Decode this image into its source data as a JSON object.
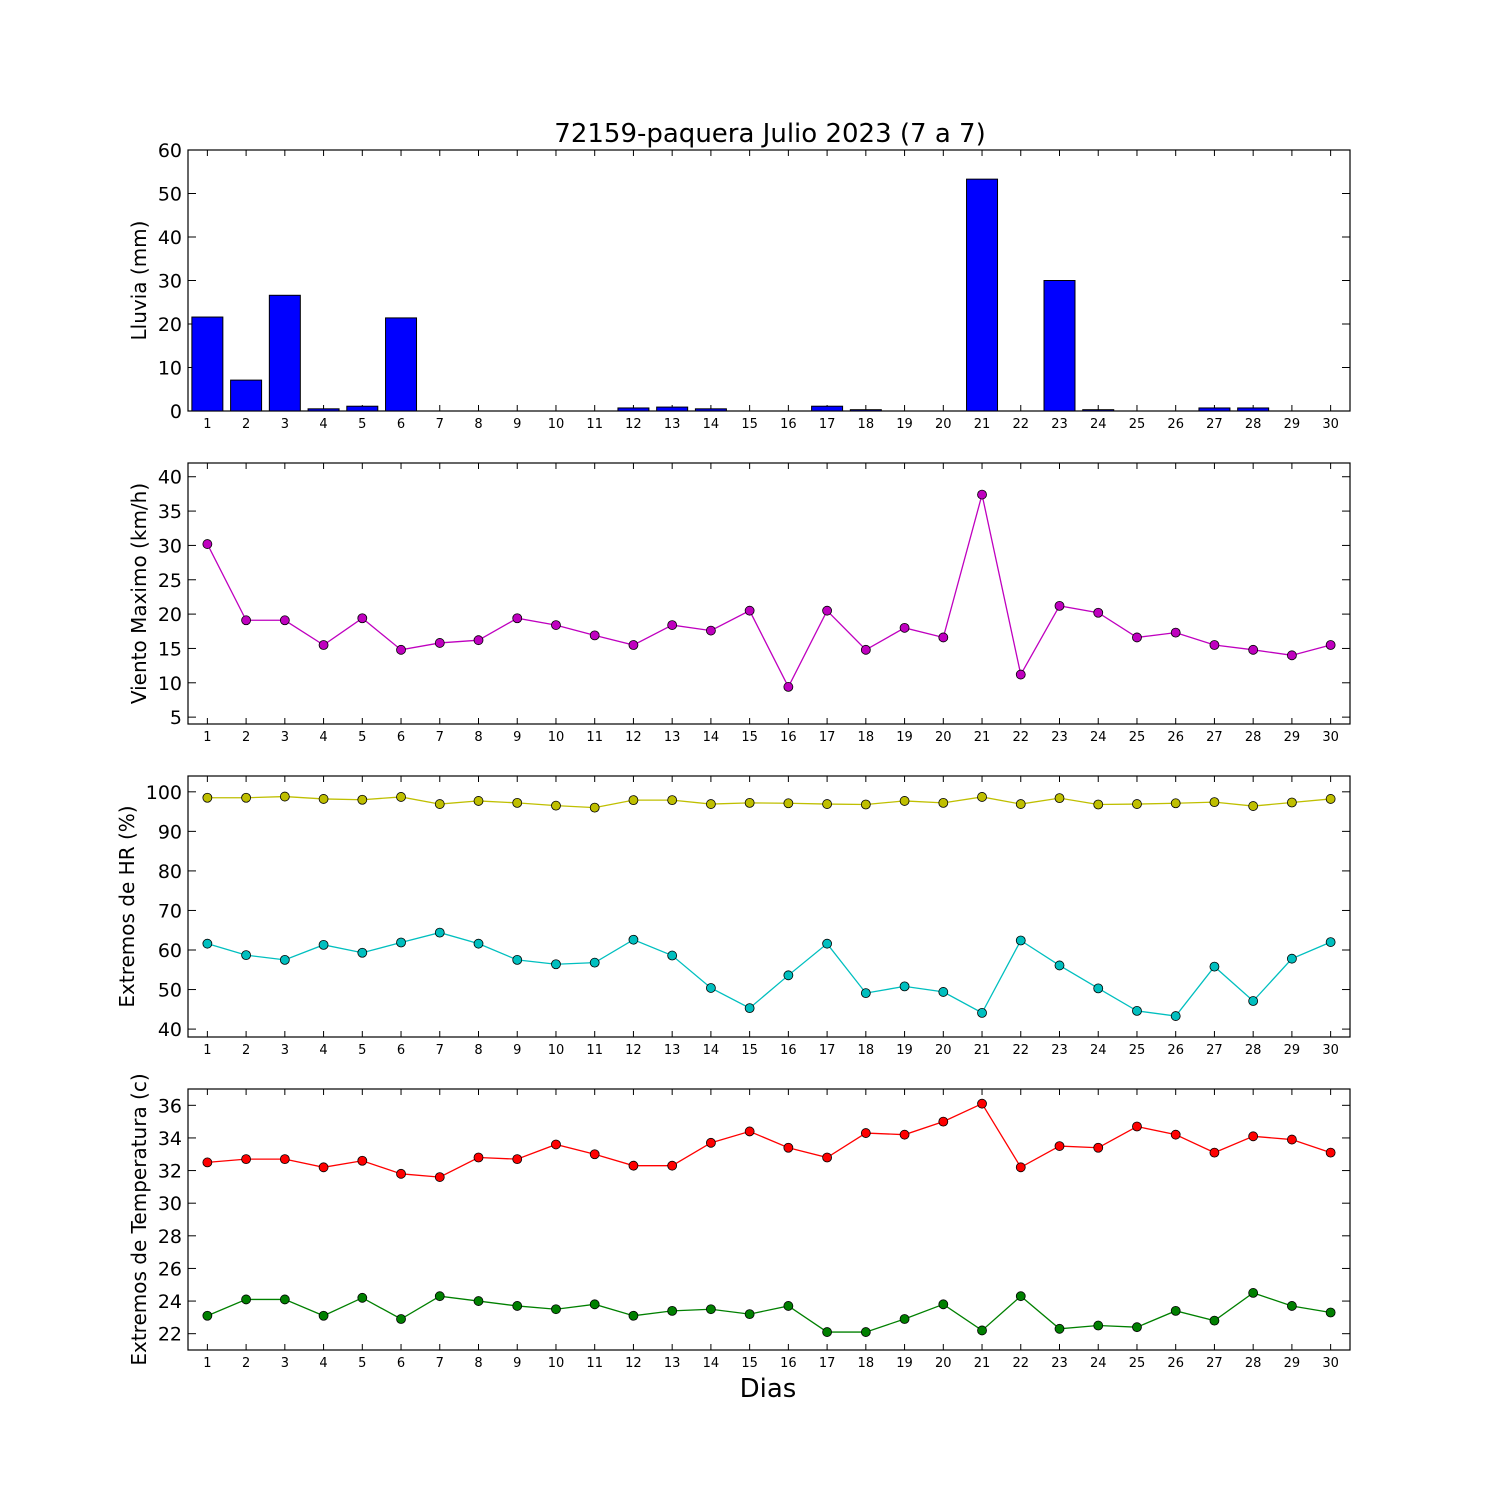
{
  "title": "72159-paquera Julio 2023  (7 a 7)",
  "xlabel": "Dias",
  "colors": {
    "rain": "#0000ff",
    "wind": "#bf00bf",
    "hr_max": "#bfbf00",
    "hr_min": "#00bfbf",
    "temp_max": "#ff0000",
    "temp_min": "#008000"
  },
  "chart_data": [
    {
      "type": "bar",
      "ylabel": "Lluvia (mm)",
      "categories": [
        "1",
        "2",
        "3",
        "4",
        "5",
        "6",
        "7",
        "8",
        "9",
        "10",
        "11",
        "12",
        "13",
        "14",
        "15",
        "16",
        "17",
        "18",
        "19",
        "20",
        "21",
        "22",
        "23",
        "24",
        "25",
        "26",
        "27",
        "28",
        "29",
        "30"
      ],
      "values": [
        21.6,
        7.1,
        26.6,
        0.5,
        1.1,
        21.4,
        0,
        0,
        0,
        0,
        0,
        0.7,
        0.9,
        0.5,
        0,
        0,
        1.1,
        0.3,
        0,
        0,
        53.3,
        0,
        30.0,
        0.3,
        0,
        0,
        0.7,
        0.7,
        0,
        0
      ],
      "ylim": [
        0,
        60
      ],
      "yticks": [
        0,
        10,
        20,
        30,
        40,
        50,
        60
      ]
    },
    {
      "type": "line",
      "ylabel": "Viento Maximo (km/h)",
      "categories": [
        "1",
        "2",
        "3",
        "4",
        "5",
        "6",
        "7",
        "8",
        "9",
        "10",
        "11",
        "12",
        "13",
        "14",
        "15",
        "16",
        "17",
        "18",
        "19",
        "20",
        "21",
        "22",
        "23",
        "24",
        "25",
        "26",
        "27",
        "28",
        "29",
        "30"
      ],
      "series": [
        {
          "values": [
            30.2,
            19.1,
            19.1,
            15.5,
            19.4,
            14.8,
            15.8,
            16.2,
            19.4,
            18.4,
            16.9,
            15.5,
            18.4,
            17.6,
            20.5,
            9.4,
            20.5,
            14.8,
            18.0,
            16.6,
            37.4,
            11.2,
            21.2,
            20.2,
            16.6,
            17.3,
            15.5,
            14.8,
            14.0,
            15.5
          ]
        }
      ],
      "ylim": [
        4,
        42
      ],
      "yticks": [
        5,
        10,
        15,
        20,
        25,
        30,
        35,
        40
      ]
    },
    {
      "type": "line",
      "ylabel": "Extremos de HR (%)",
      "categories": [
        "1",
        "2",
        "3",
        "4",
        "5",
        "6",
        "7",
        "8",
        "9",
        "10",
        "11",
        "12",
        "13",
        "14",
        "15",
        "16",
        "17",
        "18",
        "19",
        "20",
        "21",
        "22",
        "23",
        "24",
        "25",
        "26",
        "27",
        "28",
        "29",
        "30"
      ],
      "series": [
        {
          "values": [
            98.5,
            98.5,
            98.8,
            98.2,
            98.0,
            98.7,
            96.9,
            97.7,
            97.2,
            96.5,
            96.0,
            97.9,
            97.9,
            96.9,
            97.2,
            97.1,
            96.9,
            96.8,
            97.7,
            97.2,
            98.7,
            96.9,
            98.4,
            96.8,
            96.9,
            97.1,
            97.4,
            96.4,
            97.3,
            98.2
          ]
        },
        {
          "values": [
            61.6,
            58.7,
            57.5,
            61.3,
            59.3,
            61.9,
            64.4,
            61.6,
            57.5,
            56.4,
            56.8,
            62.6,
            58.6,
            50.4,
            45.3,
            53.6,
            61.6,
            49.1,
            50.8,
            49.4,
            44.1,
            62.4,
            56.1,
            50.3,
            44.6,
            43.3,
            55.8,
            47.1,
            57.8,
            62.0
          ]
        }
      ],
      "ylim": [
        38,
        104
      ],
      "yticks": [
        40,
        50,
        60,
        70,
        80,
        90,
        100
      ]
    },
    {
      "type": "line",
      "ylabel": "Extremos de Temperatura (c)",
      "categories": [
        "1",
        "2",
        "3",
        "4",
        "5",
        "6",
        "7",
        "8",
        "9",
        "10",
        "11",
        "12",
        "13",
        "14",
        "15",
        "16",
        "17",
        "18",
        "19",
        "20",
        "21",
        "22",
        "23",
        "24",
        "25",
        "26",
        "27",
        "28",
        "29",
        "30"
      ],
      "series": [
        {
          "values": [
            32.5,
            32.7,
            32.7,
            32.2,
            32.6,
            31.8,
            31.6,
            32.8,
            32.7,
            33.6,
            33.0,
            32.3,
            32.3,
            33.7,
            34.4,
            33.4,
            32.8,
            34.3,
            34.2,
            35.0,
            36.1,
            32.2,
            33.5,
            33.4,
            34.7,
            34.2,
            33.1,
            34.1,
            33.9,
            33.1
          ]
        },
        {
          "values": [
            23.1,
            24.1,
            24.1,
            23.1,
            24.2,
            22.9,
            24.3,
            24.0,
            23.7,
            23.5,
            23.8,
            23.1,
            23.4,
            23.5,
            23.2,
            23.7,
            22.1,
            22.1,
            22.9,
            23.8,
            22.2,
            24.3,
            22.3,
            22.5,
            22.4,
            23.4,
            22.8,
            24.5,
            23.7,
            23.3
          ]
        }
      ],
      "ylim": [
        21,
        37
      ],
      "yticks": [
        22,
        24,
        26,
        28,
        30,
        32,
        34,
        36
      ]
    }
  ]
}
